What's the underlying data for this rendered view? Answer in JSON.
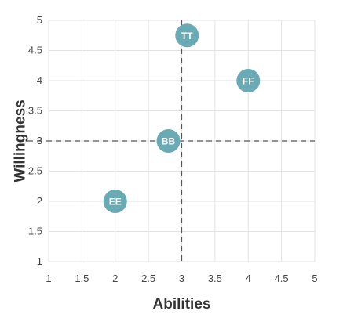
{
  "chart_data": {
    "type": "scatter",
    "xlabel": "Abilities",
    "ylabel": "Willingness",
    "xlim": [
      1,
      5
    ],
    "ylim": [
      1,
      5
    ],
    "x_ticks": [
      "1",
      "1.5",
      "2",
      "2.5",
      "3",
      "3.5",
      "4",
      "4.5",
      "5"
    ],
    "y_ticks": [
      "1",
      "1.5",
      "2",
      "2.5",
      "3",
      "3.5",
      "4",
      "4.5",
      "5"
    ],
    "grid": true,
    "reference_lines": {
      "x": 3,
      "y": 3,
      "style": "dashed"
    },
    "marker_color": "#6aaab4",
    "points": [
      {
        "label": "TT",
        "x": 3.08,
        "y": 4.75
      },
      {
        "label": "FF",
        "x": 4.0,
        "y": 4.0
      },
      {
        "label": "BB",
        "x": 2.8,
        "y": 3.0
      },
      {
        "label": "EE",
        "x": 2.0,
        "y": 2.0
      }
    ]
  }
}
